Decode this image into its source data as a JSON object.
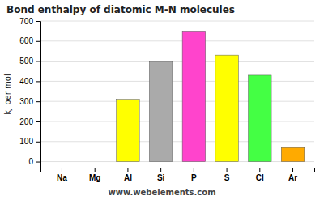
{
  "chart_data": {
    "type": "bar",
    "title": "Bond enthalpy of diatomic M-N molecules",
    "y_label": "kJ per mol",
    "annotations": [
      "www.webelements.com"
    ],
    "categories": [
      "Na",
      "Mg",
      "Al",
      "Si",
      "P",
      "S",
      "Cl",
      "Ar"
    ],
    "values": [
      0,
      0,
      310,
      500,
      650,
      530,
      430,
      70
    ],
    "colors": [
      "#ffff00",
      "#aaaaaa",
      "#ffff00",
      "#aaaaaa",
      "#ff44cc",
      "#ffff00",
      "#44ff44",
      "#ffaa00"
    ],
    "ylim": [
      -30,
      700
    ],
    "yticks": [
      0,
      100,
      200,
      300,
      400,
      500,
      600,
      700
    ],
    "grid": true
  }
}
